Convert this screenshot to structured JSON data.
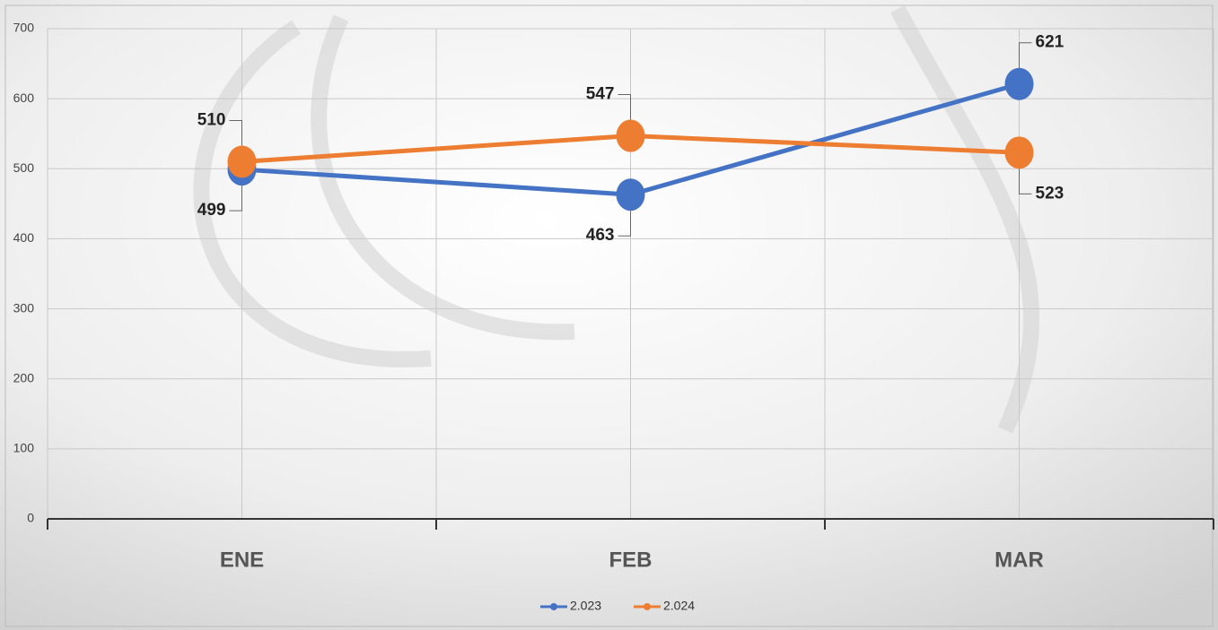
{
  "chart_data": {
    "type": "line",
    "categories": [
      "ENE",
      "FEB",
      "MAR"
    ],
    "series": [
      {
        "name": "2.023",
        "color": "#4472c4",
        "values": [
          499,
          463,
          621
        ]
      },
      {
        "name": "2.024",
        "color": "#ed7d31",
        "values": [
          510,
          547,
          523
        ]
      }
    ],
    "ylim": [
      0,
      700
    ],
    "yticks": [
      0,
      100,
      200,
      300,
      400,
      500,
      600,
      700
    ],
    "grid": true,
    "legend": "bottom"
  }
}
